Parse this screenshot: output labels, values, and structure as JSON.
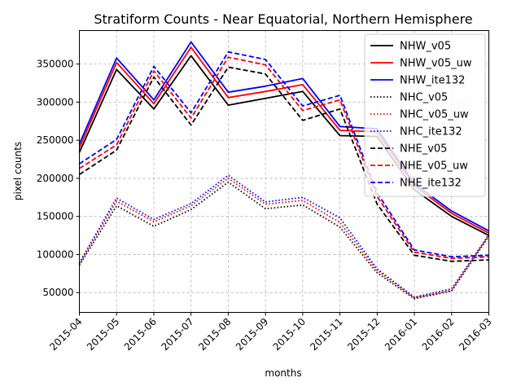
{
  "chart_data": {
    "type": "line",
    "title": "Stratiform Counts - Near Equatorial, Northern Hemisphere",
    "xlabel": "months",
    "ylabel": "pixel counts",
    "x": [
      "2015-04",
      "2015-05",
      "2015-06",
      "2015-07",
      "2015-08",
      "2015-09",
      "2015-10",
      "2015-11",
      "2015-12",
      "2016-01",
      "2016-02",
      "2016-03"
    ],
    "ylim": [
      24000,
      394000
    ],
    "yticks": [
      50000,
      100000,
      150000,
      200000,
      250000,
      300000,
      350000
    ],
    "grid": true,
    "legend_position": "top-right",
    "series": [
      {
        "name": "NHW_v05",
        "color": "#000000",
        "style": "solid",
        "values": [
          234000,
          343000,
          291000,
          361000,
          296000,
          305000,
          314000,
          256000,
          255000,
          185000,
          150000,
          125000
        ]
      },
      {
        "name": "NHW_v05_uw",
        "color": "#ff0000",
        "style": "solid",
        "values": [
          240000,
          352000,
          298000,
          372000,
          306000,
          314000,
          323000,
          263000,
          261000,
          190000,
          154000,
          128000
        ]
      },
      {
        "name": "NHW_ite132",
        "color": "#0000ff",
        "style": "solid",
        "values": [
          245000,
          358000,
          303000,
          379000,
          313000,
          321000,
          331000,
          268000,
          265000,
          193000,
          157000,
          131000
        ]
      },
      {
        "name": "NHC_v05",
        "color": "#000000",
        "style": "dotted",
        "values": [
          86000,
          164000,
          137000,
          159000,
          195000,
          160000,
          165000,
          136000,
          76000,
          42000,
          52000,
          124000
        ]
      },
      {
        "name": "NHC_v05_uw",
        "color": "#ff0000",
        "style": "dotted",
        "values": [
          88000,
          170000,
          143000,
          164000,
          200000,
          166000,
          171000,
          142000,
          79000,
          43000,
          53000,
          125000
        ]
      },
      {
        "name": "NHC_ite132",
        "color": "#0000ff",
        "style": "dotted",
        "values": [
          89000,
          174000,
          146000,
          167000,
          204000,
          169000,
          175000,
          148000,
          81000,
          44000,
          55000,
          126000
        ]
      },
      {
        "name": "NHE_v05",
        "color": "#000000",
        "style": "dashed",
        "values": [
          205000,
          237000,
          333000,
          270000,
          346000,
          337000,
          276000,
          291000,
          166000,
          99000,
          91000,
          93000
        ]
      },
      {
        "name": "NHE_v05_uw",
        "color": "#ff0000",
        "style": "dashed",
        "values": [
          213000,
          244000,
          341000,
          279000,
          359000,
          349000,
          289000,
          303000,
          176000,
          103000,
          95000,
          97000
        ]
      },
      {
        "name": "NHE_ite132",
        "color": "#0000ff",
        "style": "dashed",
        "values": [
          219000,
          251000,
          347000,
          286000,
          366000,
          356000,
          295000,
          309000,
          181000,
          106000,
          97000,
          99000
        ]
      }
    ]
  }
}
